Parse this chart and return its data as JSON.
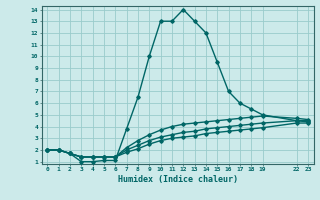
{
  "title": "",
  "xlabel": "Humidex (Indice chaleur)",
  "bg_color": "#cceaea",
  "grid_color": "#99cccc",
  "line_color": "#006666",
  "spine_color": "#336666",
  "xlim_min": -0.5,
  "xlim_max": 23.5,
  "ylim_min": 0.8,
  "ylim_max": 14.3,
  "xtick_positions": [
    0,
    1,
    2,
    3,
    4,
    5,
    6,
    7,
    8,
    9,
    10,
    11,
    12,
    13,
    14,
    15,
    16,
    17,
    18,
    19,
    22,
    23
  ],
  "xtick_labels": [
    "0",
    "1",
    "2",
    "3",
    "4",
    "5",
    "6",
    "7",
    "8",
    "9",
    "10",
    "11",
    "12",
    "13",
    "14",
    "15",
    "16",
    "17",
    "18",
    "19",
    "22",
    "23"
  ],
  "ytick_positions": [
    1,
    2,
    3,
    4,
    5,
    6,
    7,
    8,
    9,
    10,
    11,
    12,
    13,
    14
  ],
  "ytick_labels": [
    "1",
    "2",
    "3",
    "4",
    "5",
    "6",
    "7",
    "8",
    "9",
    "10",
    "11",
    "12",
    "13",
    "14"
  ],
  "series": [
    {
      "x": [
        0,
        1,
        2,
        3,
        4,
        5,
        6,
        7,
        8,
        9,
        10,
        11,
        12,
        13,
        14,
        15,
        16,
        17,
        18,
        19,
        22,
        23
      ],
      "y": [
        2.0,
        2.0,
        1.7,
        1.0,
        1.0,
        1.1,
        1.1,
        3.8,
        6.5,
        10.0,
        13.0,
        13.0,
        14.0,
        13.0,
        12.0,
        9.5,
        7.0,
        6.0,
        5.5,
        5.0,
        4.5,
        4.5
      ]
    },
    {
      "x": [
        0,
        1,
        2,
        3,
        4,
        5,
        6,
        7,
        8,
        9,
        10,
        11,
        12,
        13,
        14,
        15,
        16,
        17,
        18,
        19,
        22,
        23
      ],
      "y": [
        2.0,
        2.0,
        1.7,
        1.4,
        1.4,
        1.4,
        1.4,
        2.2,
        2.8,
        3.3,
        3.7,
        4.0,
        4.2,
        4.3,
        4.4,
        4.5,
        4.6,
        4.7,
        4.8,
        4.9,
        4.7,
        4.6
      ]
    },
    {
      "x": [
        0,
        1,
        2,
        3,
        4,
        5,
        6,
        7,
        8,
        9,
        10,
        11,
        12,
        13,
        14,
        15,
        16,
        17,
        18,
        19,
        22,
        23
      ],
      "y": [
        2.0,
        2.0,
        1.7,
        1.4,
        1.4,
        1.4,
        1.4,
        2.0,
        2.4,
        2.8,
        3.1,
        3.3,
        3.5,
        3.6,
        3.8,
        3.9,
        4.0,
        4.1,
        4.2,
        4.3,
        4.5,
        4.4
      ]
    },
    {
      "x": [
        0,
        1,
        2,
        3,
        4,
        5,
        6,
        7,
        8,
        9,
        10,
        11,
        12,
        13,
        14,
        15,
        16,
        17,
        18,
        19,
        22,
        23
      ],
      "y": [
        2.0,
        2.0,
        1.7,
        1.4,
        1.4,
        1.4,
        1.4,
        1.8,
        2.1,
        2.5,
        2.8,
        3.0,
        3.1,
        3.2,
        3.4,
        3.5,
        3.6,
        3.7,
        3.8,
        3.9,
        4.3,
        4.3
      ]
    }
  ]
}
